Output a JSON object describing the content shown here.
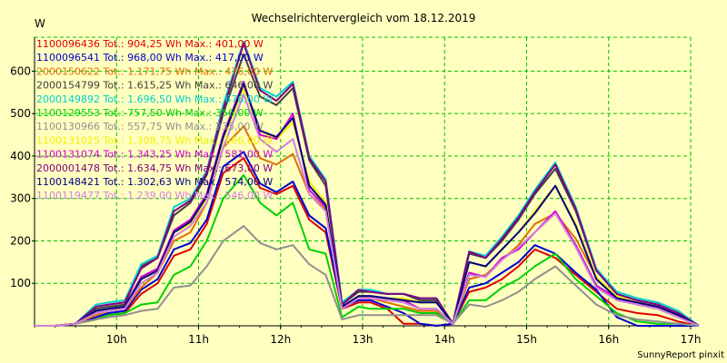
{
  "chart_data": {
    "type": "line",
    "title": "Wechselrichtervergleich vom 18.12.2019",
    "ylabel": "W",
    "xlabel": "",
    "credit": "SunnyReport pinxit",
    "ylim": [
      0,
      680
    ],
    "xlim": [
      9,
      17
    ],
    "yticks": [
      100,
      200,
      300,
      400,
      500,
      600
    ],
    "xticks": [
      {
        "value": 10,
        "label": "10h"
      },
      {
        "value": 11,
        "label": "11h"
      },
      {
        "value": 12,
        "label": "12h"
      },
      {
        "value": 13,
        "label": "13h"
      },
      {
        "value": 14,
        "label": "14h"
      },
      {
        "value": 15,
        "label": "15h"
      },
      {
        "value": 16,
        "label": "16h"
      },
      {
        "value": 17,
        "label": "17h"
      }
    ],
    "grid": true,
    "legend_position": "top-left",
    "x": [
      9.0,
      9.25,
      9.5,
      9.75,
      9.9,
      10.1,
      10.3,
      10.5,
      10.7,
      10.9,
      11.1,
      11.3,
      11.55,
      11.75,
      11.95,
      12.15,
      12.35,
      12.55,
      12.75,
      12.95,
      13.1,
      13.3,
      13.5,
      13.7,
      13.9,
      14.1,
      14.3,
      14.5,
      14.7,
      14.9,
      15.1,
      15.35,
      15.6,
      15.85,
      16.1,
      16.35,
      16.6,
      16.85,
      17.1
    ],
    "series": [
      {
        "name": "1100096436 Tot.: 904,25 Wh Max.: 401,00 W",
        "color": "#e00000",
        "values": [
          0,
          0,
          5,
          15,
          25,
          30,
          75,
          100,
          165,
          180,
          240,
          360,
          395,
          325,
          310,
          330,
          250,
          220,
          40,
          55,
          55,
          40,
          5,
          5,
          0,
          5,
          80,
          90,
          110,
          140,
          180,
          160,
          120,
          80,
          40,
          30,
          25,
          10,
          0
        ]
      },
      {
        "name": "1100096541 Tot.: 968,00 Wh Max.: 417,00 W",
        "color": "#0000d0",
        "values": [
          0,
          0,
          5,
          20,
          30,
          35,
          85,
          110,
          180,
          195,
          250,
          375,
          410,
          335,
          315,
          340,
          260,
          230,
          45,
          60,
          60,
          45,
          30,
          5,
          0,
          5,
          90,
          100,
          125,
          150,
          190,
          170,
          125,
          85,
          20,
          0,
          0,
          0,
          0
        ]
      },
      {
        "name": "2000150622 Tot.: 1.171,75 Wh Max.: 476,00 W",
        "color": "#e07000",
        "values": [
          0,
          0,
          5,
          25,
          35,
          40,
          90,
          125,
          200,
          220,
          290,
          420,
          470,
          395,
          380,
          405,
          310,
          275,
          45,
          65,
          65,
          55,
          45,
          35,
          35,
          5,
          110,
          120,
          155,
          190,
          240,
          265,
          205,
          115,
          65,
          50,
          40,
          20,
          0
        ]
      },
      {
        "name": "2000154799 Tot.: 1.615,25 Wh Max.: 646,00 W",
        "color": "#404040",
        "values": [
          0,
          0,
          5,
          40,
          45,
          50,
          140,
          160,
          260,
          290,
          355,
          500,
          640,
          540,
          520,
          560,
          390,
          330,
          50,
          80,
          80,
          75,
          75,
          60,
          60,
          5,
          170,
          160,
          200,
          250,
          310,
          370,
          270,
          130,
          75,
          60,
          50,
          30,
          0
        ]
      },
      {
        "name": "2000149892 Tot.: 1.696,50 Wh Max.: 676,00 W",
        "color": "#00d0d0",
        "values": [
          0,
          0,
          5,
          50,
          55,
          60,
          145,
          165,
          280,
          300,
          365,
          520,
          670,
          560,
          540,
          575,
          400,
          345,
          55,
          85,
          85,
          75,
          75,
          65,
          65,
          5,
          175,
          165,
          210,
          260,
          320,
          385,
          280,
          135,
          80,
          65,
          55,
          35,
          0
        ]
      },
      {
        "name": "1100129553 Tot.: 757,50 Wh Max.: 356,00 W",
        "color": "#00d000",
        "values": [
          0,
          0,
          5,
          15,
          25,
          30,
          50,
          55,
          120,
          140,
          200,
          300,
          355,
          290,
          260,
          290,
          180,
          170,
          20,
          45,
          40,
          40,
          40,
          30,
          30,
          5,
          60,
          60,
          90,
          110,
          140,
          170,
          110,
          70,
          30,
          10,
          5,
          5,
          0
        ]
      },
      {
        "name": "1100130966 Tot.: 557,75 Wh Max.: 235,00 W",
        "color": "#909090",
        "values": [
          0,
          0,
          5,
          15,
          20,
          25,
          35,
          40,
          90,
          95,
          140,
          200,
          235,
          195,
          180,
          190,
          145,
          120,
          15,
          25,
          25,
          25,
          25,
          25,
          25,
          5,
          50,
          45,
          60,
          80,
          110,
          140,
          95,
          50,
          25,
          15,
          10,
          5,
          0
        ]
      },
      {
        "name": "1100131025 Tot.: 1.308,75 Wh Max.: 566,00 W",
        "color": "#f0f000",
        "values": [
          0,
          0,
          5,
          35,
          40,
          45,
          110,
          130,
          220,
          240,
          300,
          440,
          560,
          460,
          440,
          480,
          340,
          290,
          45,
          70,
          70,
          65,
          65,
          55,
          55,
          5,
          150,
          140,
          180,
          220,
          270,
          330,
          240,
          115,
          70,
          55,
          45,
          25,
          0
        ]
      },
      {
        "name": "1100131074 Tot.: 1.343,25 Wh Max.: 581,00 W",
        "color": "#d000d0",
        "values": [
          0,
          0,
          5,
          35,
          40,
          45,
          115,
          135,
          225,
          250,
          310,
          450,
          575,
          450,
          440,
          500,
          320,
          280,
          45,
          70,
          70,
          65,
          60,
          40,
          40,
          5,
          125,
          115,
          160,
          180,
          220,
          270,
          190,
          95,
          65,
          50,
          45,
          25,
          0
        ]
      },
      {
        "name": "2000001478 Tot.: 1.634,75 Wh Max.: 673,00 W",
        "color": "#800080",
        "values": [
          0,
          0,
          5,
          45,
          50,
          55,
          135,
          160,
          270,
          295,
          360,
          510,
          665,
          555,
          530,
          570,
          395,
          340,
          50,
          85,
          80,
          75,
          75,
          65,
          65,
          5,
          175,
          160,
          205,
          255,
          315,
          380,
          275,
          130,
          75,
          60,
          50,
          30,
          0
        ]
      },
      {
        "name": "1100148421 Tot.: 1.302,63 Wh Max.: 574,00 W",
        "color": "#000080",
        "values": [
          0,
          0,
          5,
          35,
          40,
          45,
          110,
          130,
          220,
          245,
          305,
          445,
          570,
          460,
          445,
          490,
          330,
          285,
          45,
          70,
          70,
          65,
          60,
          55,
          55,
          5,
          150,
          140,
          180,
          220,
          265,
          330,
          235,
          110,
          65,
          55,
          45,
          25,
          0
        ]
      },
      {
        "name": "1100119477 Tot.: 1.239,00 Wh Max.: 546,00 W",
        "color": "#d080e0",
        "values": [
          0,
          0,
          5,
          30,
          35,
          40,
          100,
          125,
          210,
          235,
          290,
          420,
          545,
          440,
          410,
          440,
          310,
          270,
          40,
          65,
          65,
          60,
          55,
          40,
          40,
          5,
          120,
          115,
          155,
          185,
          220,
          265,
          185,
          90,
          60,
          50,
          40,
          20,
          0
        ]
      }
    ]
  }
}
